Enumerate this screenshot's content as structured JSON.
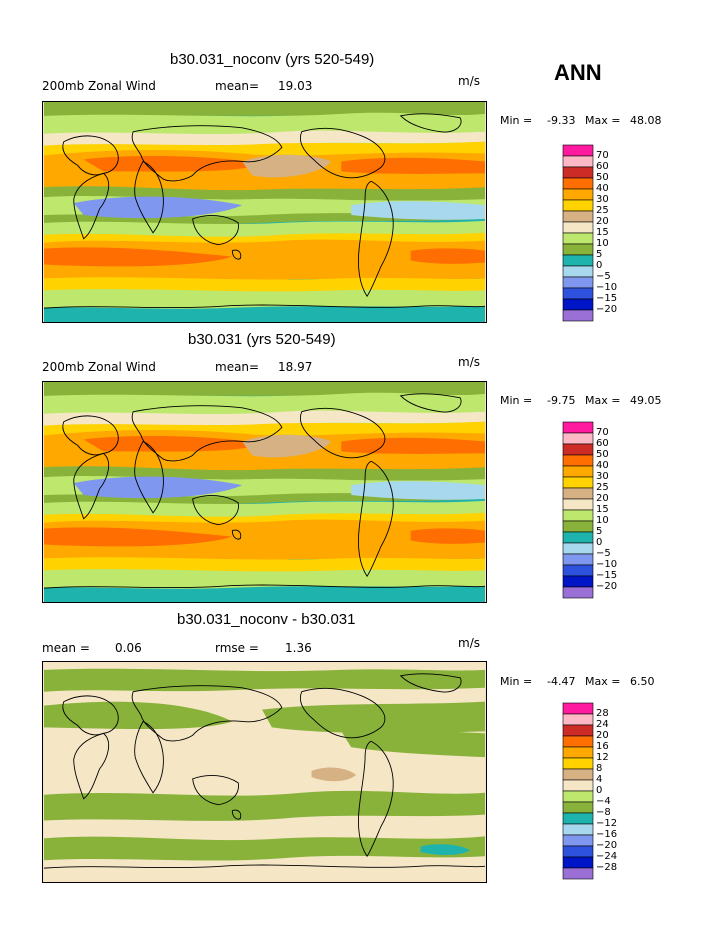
{
  "season": "ANN",
  "colors": [
    "#9a6fd6",
    "#0015c6",
    "#2e52dd",
    "#7f97ee",
    "#a8d8ee",
    "#1fb3ad",
    "#88b23a",
    "#bde86d",
    "#f5e6c6",
    "#d6b183",
    "#ffd200",
    "#ffa900",
    "#ff6e00",
    "#cd2b26",
    "#ffb8c6",
    "#ff1aa0"
  ],
  "panels": [
    {
      "title": "b30.031_noconv (yrs 520-549)",
      "left_label": "200mb Zonal Wind",
      "stat1_label": "mean=",
      "stat1_value": "19.03",
      "stat2_label": "",
      "stat2_value": "",
      "units": "m/s",
      "min_label": "Min =",
      "min_value": "-9.33",
      "max_label": "Max =",
      "max_value": "48.08",
      "levels": [
        "70",
        "60",
        "50",
        "40",
        "30",
        "25",
        "20",
        "15",
        "10",
        "5",
        "0",
        "−5",
        "−10",
        "−15",
        "−20"
      ]
    },
    {
      "title": "b30.031 (yrs 520-549)",
      "left_label": "200mb Zonal Wind",
      "stat1_label": "mean=",
      "stat1_value": "18.97",
      "stat2_label": "",
      "stat2_value": "",
      "units": "m/s",
      "min_label": "Min =",
      "min_value": "-9.75",
      "max_label": "Max =",
      "max_value": "49.05",
      "levels": [
        "70",
        "60",
        "50",
        "40",
        "30",
        "25",
        "20",
        "15",
        "10",
        "5",
        "0",
        "−5",
        "−10",
        "−15",
        "−20"
      ]
    },
    {
      "title": "b30.031_noconv - b30.031",
      "left_label": "mean =",
      "stat1_label": "",
      "stat1_value": "0.06",
      "stat2_label": "rmse =",
      "stat2_value": "1.36",
      "units": "m/s",
      "min_label": "Min =",
      "min_value": "-4.47",
      "max_label": "Max =",
      "max_value": "6.50",
      "levels": [
        "28",
        "24",
        "20",
        "16",
        "12",
        "8",
        "4",
        "0",
        "−4",
        "−8",
        "−12",
        "−16",
        "−20",
        "−24",
        "−28"
      ]
    }
  ]
}
